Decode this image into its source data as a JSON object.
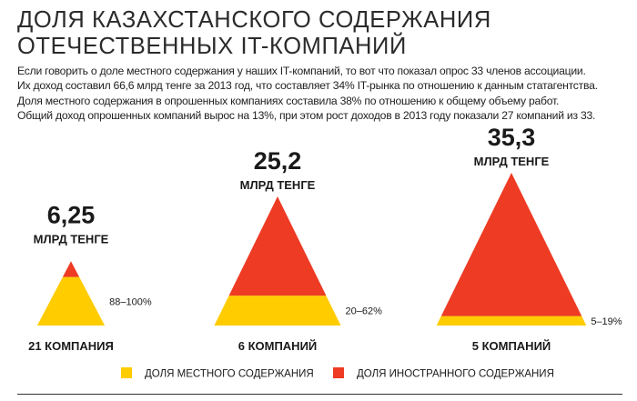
{
  "title": {
    "line1": "ДОЛЯ КАЗАХСТАНСКОГО СОДЕРЖАНИЯ",
    "line2": "ОТЕЧЕСТВЕННЫХ IT-КОМПАНИЙ"
  },
  "intro": [
    "Если говорить о доле местного содержания у наших IT-компаний, то вот что показал опрос  33 членов ассоциации.",
    "Их доход составил 66,6 млрд тенге за 2013 год, что составляет 34% IT-рынка по отношению к данным статагентства.",
    "Доля местного содержания в опрошенных компаниях составила 38% по отношению к общему объему работ.",
    "Общий доход опрошенных компаний вырос на 13%, при этом рост доходов в 2013 году показали 27 компаний из 33."
  ],
  "colors": {
    "local": "#ffcc00",
    "foreign": "#ee3b24"
  },
  "chart_data": {
    "type": "other",
    "value_unit": "МЛРД ТЕНГЕ",
    "groups": [
      {
        "value": 6.25,
        "value_label": "6,25",
        "unit": "МЛРД ТЕНГЕ",
        "local_share_label": "88–100%",
        "local_share": 0.94,
        "companies_label": "21 КОМПАНИЯ"
      },
      {
        "value": 25.2,
        "value_label": "25,2",
        "unit": "МЛРД ТЕНГЕ",
        "local_share_label": "20–62%",
        "local_share": 0.41,
        "companies_label": "6 КОМПАНИЙ"
      },
      {
        "value": 35.3,
        "value_label": "35,3",
        "unit": "МЛРД ТЕНГЕ",
        "local_share_label": "5–19%",
        "local_share": 0.12,
        "companies_label": "5 КОМПАНИЙ"
      }
    ],
    "legend": [
      {
        "name": "ДОЛЯ МЕСТНОГО СОДЕРЖАНИЯ",
        "color": "#ffcc00"
      },
      {
        "name": "ДОЛЯ ИНОСТРАННОГО СОДЕРЖАНИЯ",
        "color": "#ee3b24"
      }
    ]
  }
}
